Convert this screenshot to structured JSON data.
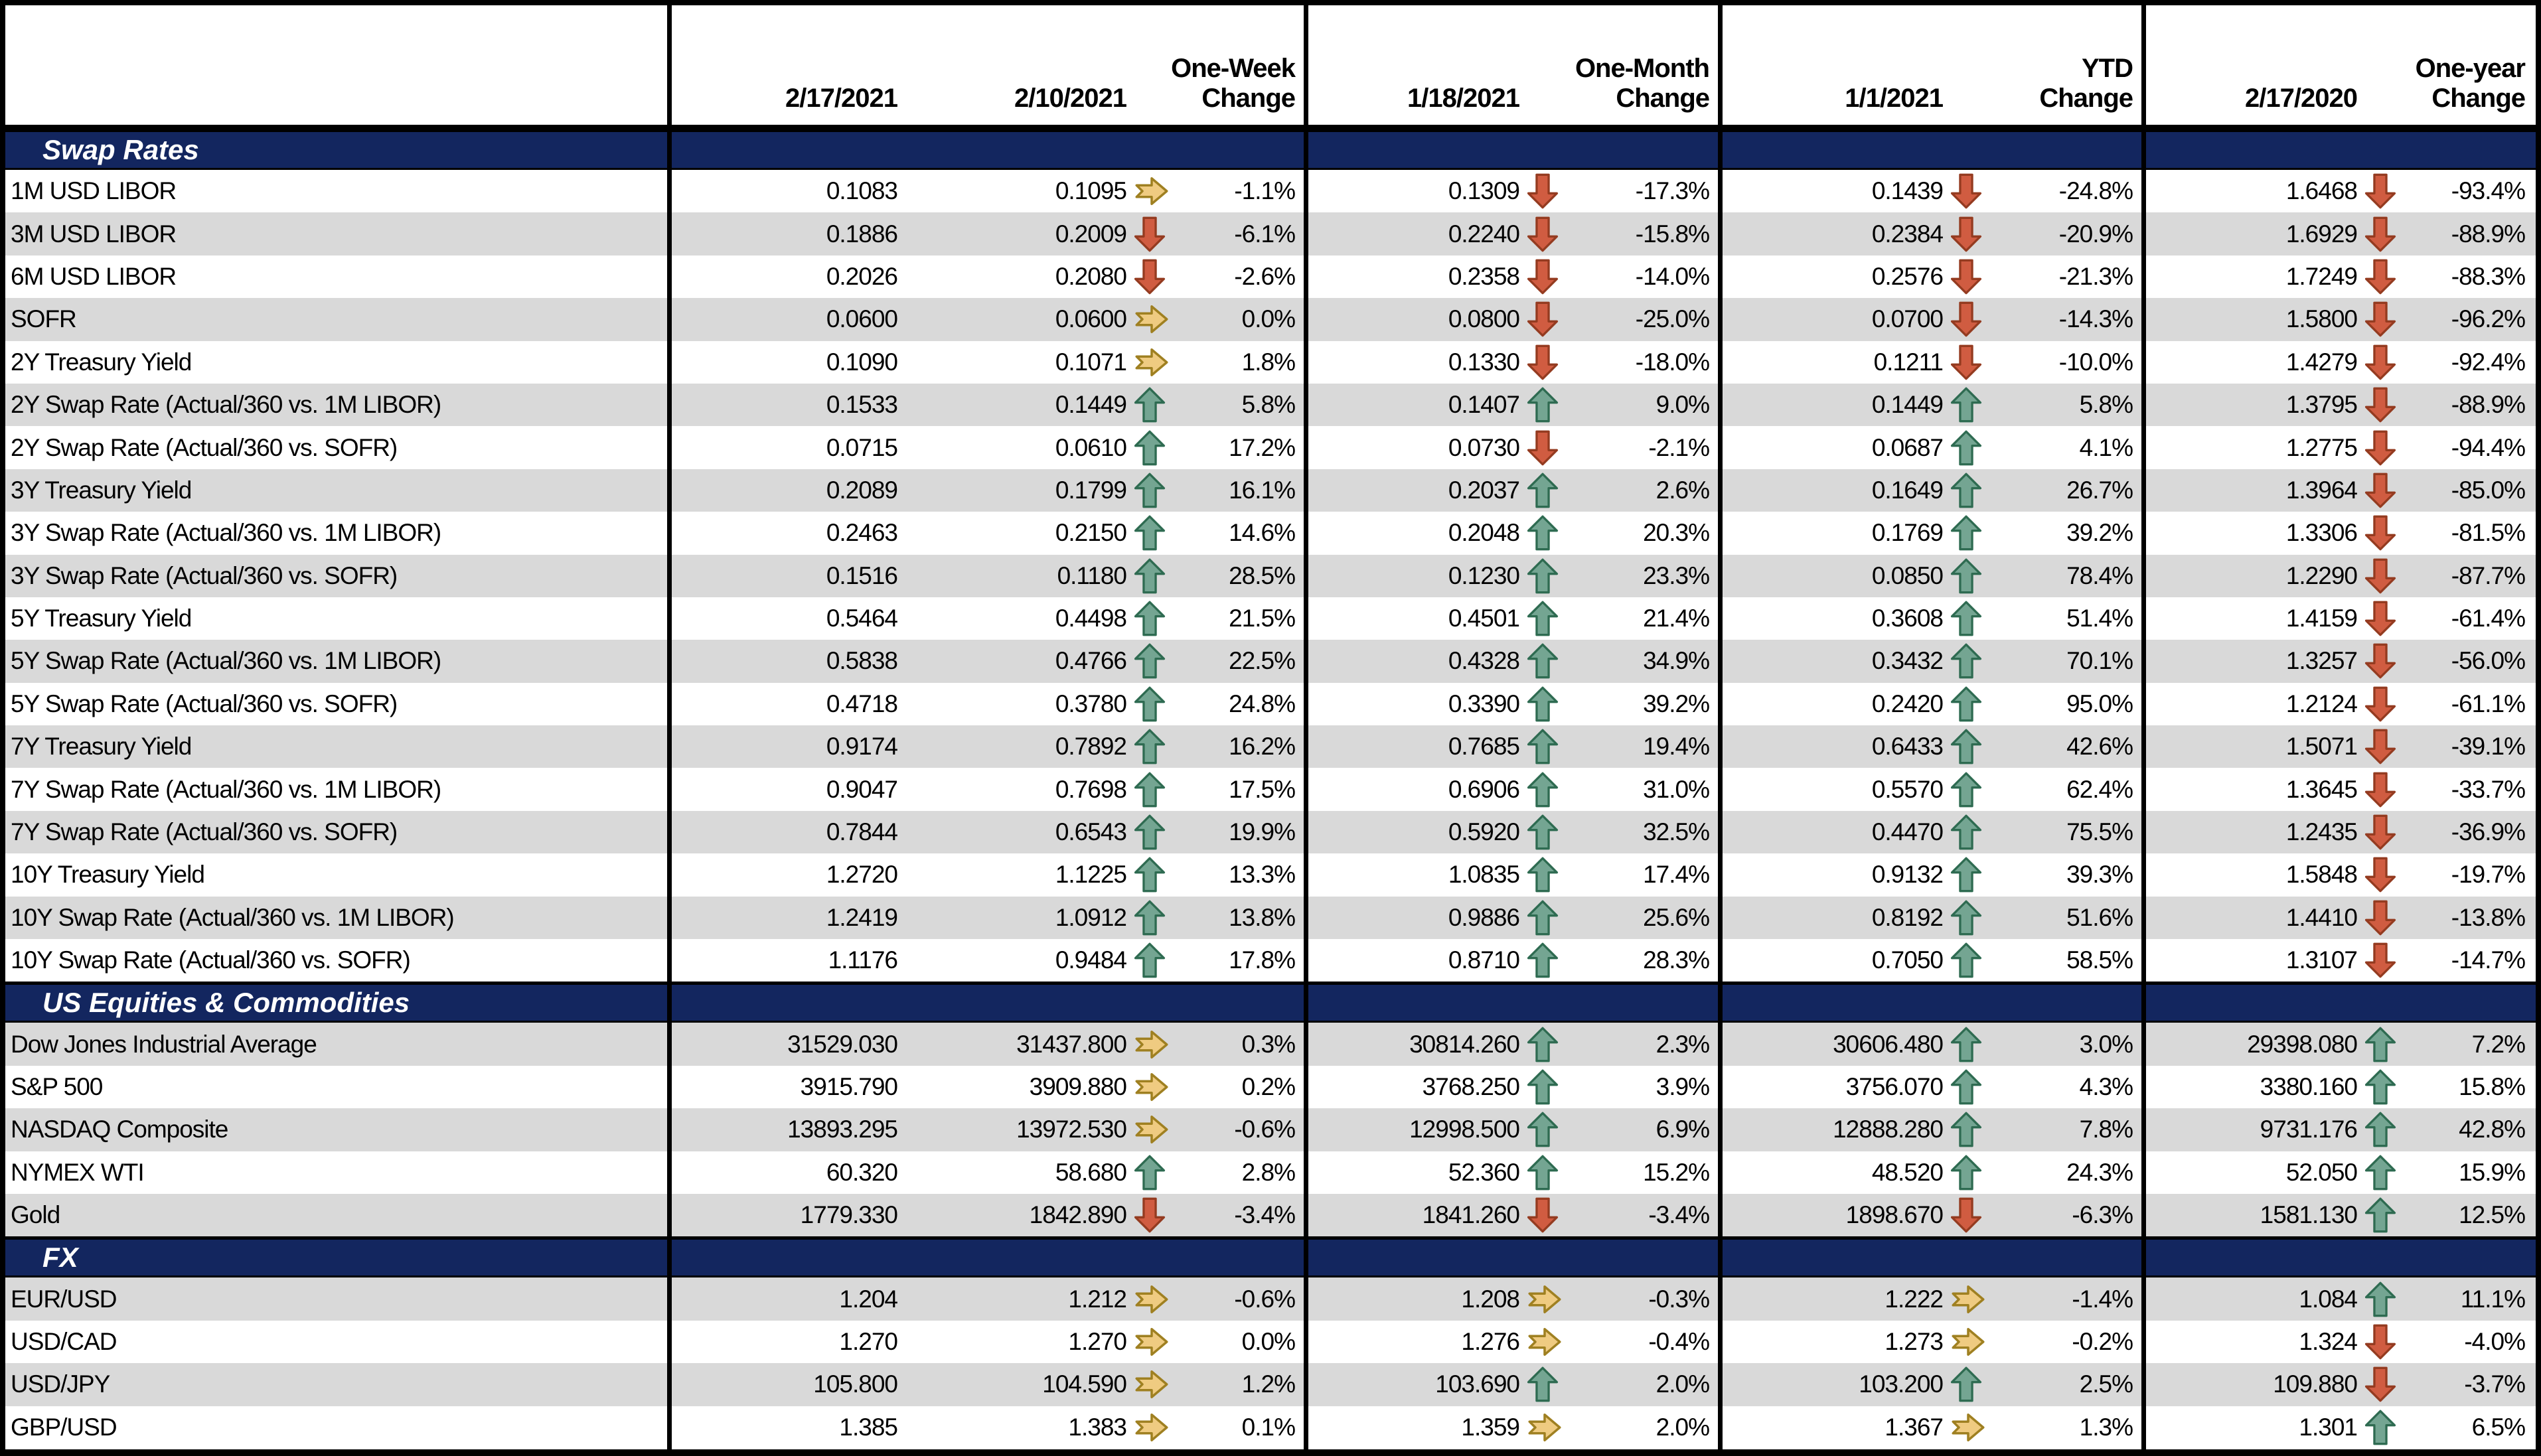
{
  "table": {
    "header": {
      "dates": [
        "2/17/2021",
        "2/10/2021",
        "1/18/2021",
        "1/1/2021",
        "2/17/2020"
      ],
      "change_labels": [
        [
          "One-Week",
          "Change"
        ],
        [
          "One-Month",
          "Change"
        ],
        [
          "YTD",
          "Change"
        ],
        [
          "One-year",
          "Change"
        ]
      ]
    },
    "colors": {
      "section_bg": "#13265F",
      "stripe_gray": "#D9D9D9",
      "row_white": "#FFFFFF",
      "border_black": "#000000",
      "arrow_up_fill": "#74A592",
      "arrow_up_stroke": "#2E6B51",
      "arrow_down_fill": "#D05C41",
      "arrow_down_stroke": "#943B20",
      "arrow_right_fill": "#EFCB81",
      "arrow_right_stroke": "#9F8021"
    },
    "sections": [
      {
        "title": "Swap Rates",
        "rows": [
          {
            "label": "1M USD LIBOR",
            "values": [
              "0.1083",
              "0.1095",
              "0.1309",
              "0.1439",
              "1.6468"
            ],
            "icons": [
              "right",
              "down",
              "down",
              "down"
            ],
            "changes": [
              "-1.1%",
              "-17.3%",
              "-24.8%",
              "-93.4%"
            ]
          },
          {
            "label": "3M USD LIBOR",
            "values": [
              "0.1886",
              "0.2009",
              "0.2240",
              "0.2384",
              "1.6929"
            ],
            "icons": [
              "down",
              "down",
              "down",
              "down"
            ],
            "changes": [
              "-6.1%",
              "-15.8%",
              "-20.9%",
              "-88.9%"
            ]
          },
          {
            "label": "6M USD LIBOR",
            "values": [
              "0.2026",
              "0.2080",
              "0.2358",
              "0.2576",
              "1.7249"
            ],
            "icons": [
              "down",
              "down",
              "down",
              "down"
            ],
            "changes": [
              "-2.6%",
              "-14.0%",
              "-21.3%",
              "-88.3%"
            ]
          },
          {
            "label": "SOFR",
            "values": [
              "0.0600",
              "0.0600",
              "0.0800",
              "0.0700",
              "1.5800"
            ],
            "icons": [
              "right",
              "down",
              "down",
              "down"
            ],
            "changes": [
              "0.0%",
              "-25.0%",
              "-14.3%",
              "-96.2%"
            ]
          },
          {
            "label": "2Y Treasury Yield",
            "values": [
              "0.1090",
              "0.1071",
              "0.1330",
              "0.1211",
              "1.4279"
            ],
            "icons": [
              "right",
              "down",
              "down",
              "down"
            ],
            "changes": [
              "1.8%",
              "-18.0%",
              "-10.0%",
              "-92.4%"
            ]
          },
          {
            "label": "2Y Swap Rate (Actual/360 vs. 1M LIBOR)",
            "values": [
              "0.1533",
              "0.1449",
              "0.1407",
              "0.1449",
              "1.3795"
            ],
            "icons": [
              "up",
              "up",
              "up",
              "down"
            ],
            "changes": [
              "5.8%",
              "9.0%",
              "5.8%",
              "-88.9%"
            ]
          },
          {
            "label": "2Y Swap Rate (Actual/360 vs. SOFR)",
            "values": [
              "0.0715",
              "0.0610",
              "0.0730",
              "0.0687",
              "1.2775"
            ],
            "icons": [
              "up",
              "down",
              "up",
              "down"
            ],
            "changes": [
              "17.2%",
              "-2.1%",
              "4.1%",
              "-94.4%"
            ]
          },
          {
            "label": "3Y Treasury Yield",
            "values": [
              "0.2089",
              "0.1799",
              "0.2037",
              "0.1649",
              "1.3964"
            ],
            "icons": [
              "up",
              "up",
              "up",
              "down"
            ],
            "changes": [
              "16.1%",
              "2.6%",
              "26.7%",
              "-85.0%"
            ]
          },
          {
            "label": "3Y Swap Rate (Actual/360 vs. 1M LIBOR)",
            "values": [
              "0.2463",
              "0.2150",
              "0.2048",
              "0.1769",
              "1.3306"
            ],
            "icons": [
              "up",
              "up",
              "up",
              "down"
            ],
            "changes": [
              "14.6%",
              "20.3%",
              "39.2%",
              "-81.5%"
            ]
          },
          {
            "label": "3Y Swap Rate (Actual/360 vs. SOFR)",
            "values": [
              "0.1516",
              "0.1180",
              "0.1230",
              "0.0850",
              "1.2290"
            ],
            "icons": [
              "up",
              "up",
              "up",
              "down"
            ],
            "changes": [
              "28.5%",
              "23.3%",
              "78.4%",
              "-87.7%"
            ]
          },
          {
            "label": "5Y Treasury Yield",
            "values": [
              "0.5464",
              "0.4498",
              "0.4501",
              "0.3608",
              "1.4159"
            ],
            "icons": [
              "up",
              "up",
              "up",
              "down"
            ],
            "changes": [
              "21.5%",
              "21.4%",
              "51.4%",
              "-61.4%"
            ]
          },
          {
            "label": "5Y Swap Rate (Actual/360 vs. 1M LIBOR)",
            "values": [
              "0.5838",
              "0.4766",
              "0.4328",
              "0.3432",
              "1.3257"
            ],
            "icons": [
              "up",
              "up",
              "up",
              "down"
            ],
            "changes": [
              "22.5%",
              "34.9%",
              "70.1%",
              "-56.0%"
            ]
          },
          {
            "label": "5Y Swap Rate (Actual/360 vs. SOFR)",
            "values": [
              "0.4718",
              "0.3780",
              "0.3390",
              "0.2420",
              "1.2124"
            ],
            "icons": [
              "up",
              "up",
              "up",
              "down"
            ],
            "changes": [
              "24.8%",
              "39.2%",
              "95.0%",
              "-61.1%"
            ]
          },
          {
            "label": "7Y Treasury Yield",
            "values": [
              "0.9174",
              "0.7892",
              "0.7685",
              "0.6433",
              "1.5071"
            ],
            "icons": [
              "up",
              "up",
              "up",
              "down"
            ],
            "changes": [
              "16.2%",
              "19.4%",
              "42.6%",
              "-39.1%"
            ]
          },
          {
            "label": "7Y Swap Rate (Actual/360 vs. 1M LIBOR)",
            "values": [
              "0.9047",
              "0.7698",
              "0.6906",
              "0.5570",
              "1.3645"
            ],
            "icons": [
              "up",
              "up",
              "up",
              "down"
            ],
            "changes": [
              "17.5%",
              "31.0%",
              "62.4%",
              "-33.7%"
            ]
          },
          {
            "label": "7Y Swap Rate (Actual/360 vs. SOFR)",
            "values": [
              "0.7844",
              "0.6543",
              "0.5920",
              "0.4470",
              "1.2435"
            ],
            "icons": [
              "up",
              "up",
              "up",
              "down"
            ],
            "changes": [
              "19.9%",
              "32.5%",
              "75.5%",
              "-36.9%"
            ]
          },
          {
            "label": "10Y Treasury Yield",
            "values": [
              "1.2720",
              "1.1225",
              "1.0835",
              "0.9132",
              "1.5848"
            ],
            "icons": [
              "up",
              "up",
              "up",
              "down"
            ],
            "changes": [
              "13.3%",
              "17.4%",
              "39.3%",
              "-19.7%"
            ]
          },
          {
            "label": "10Y Swap Rate (Actual/360 vs. 1M LIBOR)",
            "values": [
              "1.2419",
              "1.0912",
              "0.9886",
              "0.8192",
              "1.4410"
            ],
            "icons": [
              "up",
              "up",
              "up",
              "down"
            ],
            "changes": [
              "13.8%",
              "25.6%",
              "51.6%",
              "-13.8%"
            ]
          },
          {
            "label": "10Y Swap Rate (Actual/360 vs. SOFR)",
            "values": [
              "1.1176",
              "0.9484",
              "0.8710",
              "0.7050",
              "1.3107"
            ],
            "icons": [
              "up",
              "up",
              "up",
              "down"
            ],
            "changes": [
              "17.8%",
              "28.3%",
              "58.5%",
              "-14.7%"
            ]
          }
        ]
      },
      {
        "title": "US Equities & Commodities",
        "rows": [
          {
            "label": "Dow Jones Industrial Average",
            "values": [
              "31529.030",
              "31437.800",
              "30814.260",
              "30606.480",
              "29398.080"
            ],
            "icons": [
              "right",
              "up",
              "up",
              "up"
            ],
            "changes": [
              "0.3%",
              "2.3%",
              "3.0%",
              "7.2%"
            ]
          },
          {
            "label": "S&P 500",
            "values": [
              "3915.790",
              "3909.880",
              "3768.250",
              "3756.070",
              "3380.160"
            ],
            "icons": [
              "right",
              "up",
              "up",
              "up"
            ],
            "changes": [
              "0.2%",
              "3.9%",
              "4.3%",
              "15.8%"
            ]
          },
          {
            "label": "NASDAQ Composite",
            "values": [
              "13893.295",
              "13972.530",
              "12998.500",
              "12888.280",
              "9731.176"
            ],
            "icons": [
              "right",
              "up",
              "up",
              "up"
            ],
            "changes": [
              "-0.6%",
              "6.9%",
              "7.8%",
              "42.8%"
            ]
          },
          {
            "label": "NYMEX WTI",
            "values": [
              "60.320",
              "58.680",
              "52.360",
              "48.520",
              "52.050"
            ],
            "icons": [
              "up",
              "up",
              "up",
              "up"
            ],
            "changes": [
              "2.8%",
              "15.2%",
              "24.3%",
              "15.9%"
            ]
          },
          {
            "label": "Gold",
            "values": [
              "1779.330",
              "1842.890",
              "1841.260",
              "1898.670",
              "1581.130"
            ],
            "icons": [
              "down",
              "down",
              "down",
              "up"
            ],
            "changes": [
              "-3.4%",
              "-3.4%",
              "-6.3%",
              "12.5%"
            ]
          }
        ]
      },
      {
        "title": "FX",
        "rows": [
          {
            "label": "EUR/USD",
            "values": [
              "1.204",
              "1.212",
              "1.208",
              "1.222",
              "1.084"
            ],
            "icons": [
              "right",
              "right",
              "right",
              "up"
            ],
            "changes": [
              "-0.6%",
              "-0.3%",
              "-1.4%",
              "11.1%"
            ]
          },
          {
            "label": "USD/CAD",
            "values": [
              "1.270",
              "1.270",
              "1.276",
              "1.273",
              "1.324"
            ],
            "icons": [
              "right",
              "right",
              "right",
              "down"
            ],
            "changes": [
              "0.0%",
              "-0.4%",
              "-0.2%",
              "-4.0%"
            ]
          },
          {
            "label": "USD/JPY",
            "values": [
              "105.800",
              "104.590",
              "103.690",
              "103.200",
              "109.880"
            ],
            "icons": [
              "right",
              "up",
              "up",
              "down"
            ],
            "changes": [
              "1.2%",
              "2.0%",
              "2.5%",
              "-3.7%"
            ]
          },
          {
            "label": "GBP/USD",
            "values": [
              "1.385",
              "1.383",
              "1.359",
              "1.367",
              "1.301"
            ],
            "icons": [
              "right",
              "right",
              "right",
              "up"
            ],
            "changes": [
              "0.1%",
              "2.0%",
              "1.3%",
              "6.5%"
            ]
          }
        ]
      }
    ]
  }
}
